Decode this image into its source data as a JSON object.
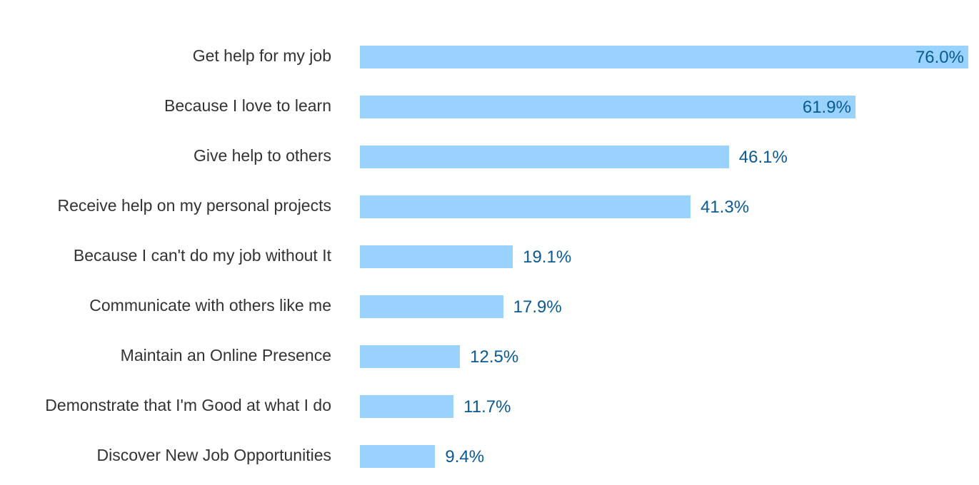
{
  "chart_data": {
    "type": "bar",
    "orientation": "horizontal",
    "categories": [
      "Get help for my job",
      "Because I love to learn",
      "Give help to others",
      "Receive help on my personal projects",
      "Because I can't do my job without It",
      "Communicate with others like me",
      "Maintain an Online Presence",
      "Demonstrate that I'm Good at what I do",
      "Discover New Job Opportunities"
    ],
    "values": [
      76.0,
      61.9,
      46.1,
      41.3,
      19.1,
      17.9,
      12.5,
      11.7,
      9.4
    ],
    "value_labels": [
      "76.0%",
      "61.9%",
      "46.1%",
      "41.3%",
      "19.1%",
      "17.9%",
      "12.5%",
      "11.7%",
      "9.4%"
    ],
    "unit": "%",
    "xlim": [
      0,
      76.0
    ],
    "grid": false,
    "legend": "none",
    "colors": {
      "bar": "#99d3fd",
      "value_label": "#0a5a92",
      "category_label": "#333333"
    }
  }
}
